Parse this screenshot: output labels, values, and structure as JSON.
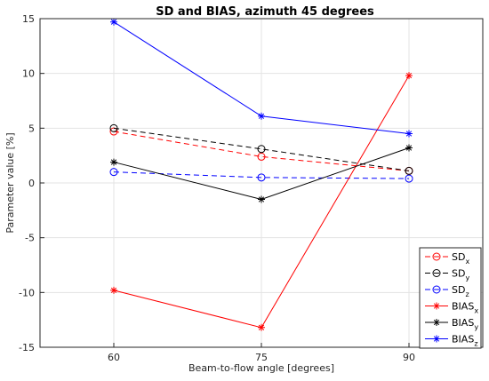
{
  "chart_data": {
    "type": "line",
    "title": "SD and BIAS, azimuth 45 degrees",
    "xlabel": "Beam-to-flow angle [degrees]",
    "ylabel": "Parameter value [%]",
    "x": [
      60,
      75,
      90
    ],
    "xlim": [
      52.5,
      97.5
    ],
    "ylim": [
      -15,
      15
    ],
    "xticks": [
      60,
      75,
      90
    ],
    "yticks": [
      -15,
      -10,
      -5,
      0,
      5,
      10,
      15
    ],
    "grid": true,
    "legend_position": "bottom-right",
    "series": [
      {
        "name": "SD",
        "sub": "x",
        "color": "#ff0000",
        "dash": "dashed",
        "marker": "circle",
        "values": [
          4.7,
          2.4,
          1.1
        ]
      },
      {
        "name": "SD",
        "sub": "y",
        "color": "#000000",
        "dash": "dashed",
        "marker": "circle",
        "values": [
          5.0,
          3.1,
          1.1
        ]
      },
      {
        "name": "SD",
        "sub": "z",
        "color": "#0000ff",
        "dash": "dashed",
        "marker": "circle",
        "values": [
          1.0,
          0.5,
          0.4
        ]
      },
      {
        "name": "BIAS",
        "sub": "x",
        "color": "#ff0000",
        "dash": "solid",
        "marker": "star",
        "values": [
          -9.8,
          -13.2,
          9.8
        ]
      },
      {
        "name": "BIAS",
        "sub": "y",
        "color": "#000000",
        "dash": "solid",
        "marker": "star",
        "values": [
          1.9,
          -1.5,
          3.2
        ]
      },
      {
        "name": "BIAS",
        "sub": "z",
        "color": "#0000ff",
        "dash": "solid",
        "marker": "star",
        "values": [
          14.7,
          6.1,
          4.5
        ]
      }
    ]
  }
}
